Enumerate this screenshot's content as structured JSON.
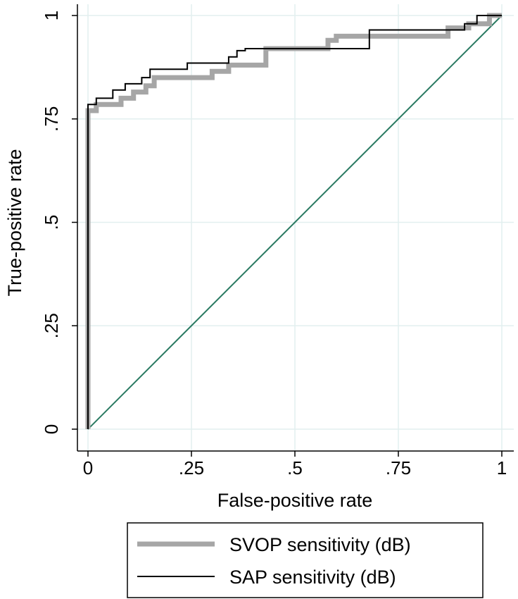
{
  "chart_data": {
    "type": "line",
    "title": "",
    "xlabel": "False-positive rate",
    "ylabel": "True-positive rate",
    "xlim": [
      0,
      1
    ],
    "ylim": [
      0,
      1
    ],
    "xticks": [
      0,
      0.25,
      0.5,
      0.75,
      1
    ],
    "xtick_labels": [
      "0",
      ".25",
      ".5",
      ".75",
      "1"
    ],
    "yticks": [
      0,
      0.25,
      0.5,
      0.75,
      1
    ],
    "ytick_labels": [
      "0",
      ".25",
      ".5",
      ".75",
      "1"
    ],
    "grid": true,
    "legend_position": "bottom",
    "series": [
      {
        "name": "SVOP sensitivity (dB)",
        "color": "#a6a6a6",
        "style": "thick",
        "x": [
          0,
          0,
          0.02,
          0.02,
          0.08,
          0.08,
          0.11,
          0.11,
          0.14,
          0.14,
          0.16,
          0.16,
          0.3,
          0.3,
          0.34,
          0.34,
          0.43,
          0.43,
          0.58,
          0.58,
          0.6,
          0.6,
          0.87,
          0.87,
          0.92,
          0.92,
          0.97,
          0.97,
          1
        ],
        "y": [
          0,
          0.77,
          0.77,
          0.785,
          0.785,
          0.8,
          0.8,
          0.815,
          0.815,
          0.83,
          0.83,
          0.85,
          0.85,
          0.865,
          0.865,
          0.88,
          0.88,
          0.92,
          0.92,
          0.94,
          0.94,
          0.95,
          0.95,
          0.97,
          0.97,
          0.98,
          0.98,
          1.0,
          1.0
        ]
      },
      {
        "name": "SAP sensitivity (dB)",
        "color": "#000000",
        "style": "thin",
        "x": [
          0,
          0,
          0.02,
          0.02,
          0.06,
          0.06,
          0.09,
          0.09,
          0.13,
          0.13,
          0.15,
          0.15,
          0.24,
          0.24,
          0.34,
          0.34,
          0.36,
          0.36,
          0.38,
          0.38,
          0.68,
          0.68,
          0.91,
          0.91,
          0.94,
          0.94,
          1
        ],
        "y": [
          0,
          0.785,
          0.785,
          0.8,
          0.8,
          0.82,
          0.82,
          0.835,
          0.835,
          0.85,
          0.85,
          0.87,
          0.87,
          0.885,
          0.885,
          0.9,
          0.9,
          0.915,
          0.915,
          0.92,
          0.92,
          0.965,
          0.965,
          0.98,
          0.98,
          1.0,
          1.0
        ]
      },
      {
        "name": "",
        "color": "#2a7a62",
        "style": "reference",
        "x": [
          0,
          1
        ],
        "y": [
          0,
          1
        ]
      }
    ]
  }
}
